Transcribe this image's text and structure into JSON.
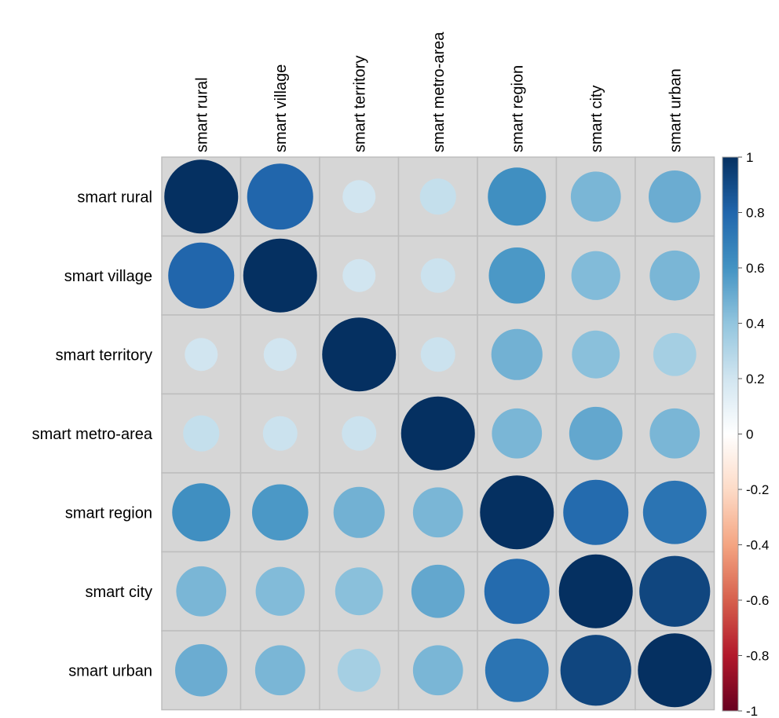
{
  "chart_data": {
    "type": "heatmap",
    "subtype": "correlation-circle-matrix",
    "title": "",
    "xlabel": "",
    "ylabel": "",
    "row_labels": [
      "smart rural",
      "smart village",
      "smart territory",
      "smart metro-area",
      "smart region",
      "smart city",
      "smart urban"
    ],
    "col_labels": [
      "smart rural",
      "smart village",
      "smart territory",
      "smart metro-area",
      "smart region",
      "smart city",
      "smart urban"
    ],
    "values": [
      [
        1.0,
        0.8,
        0.2,
        0.24,
        0.62,
        0.46,
        0.5
      ],
      [
        0.8,
        1.0,
        0.2,
        0.22,
        0.58,
        0.44,
        0.46
      ],
      [
        0.2,
        0.2,
        1.0,
        0.22,
        0.48,
        0.42,
        0.34
      ],
      [
        0.24,
        0.22,
        0.22,
        1.0,
        0.46,
        0.52,
        0.46
      ],
      [
        0.62,
        0.58,
        0.48,
        0.46,
        1.0,
        0.78,
        0.74
      ],
      [
        0.46,
        0.44,
        0.42,
        0.52,
        0.78,
        1.0,
        0.92
      ],
      [
        0.5,
        0.46,
        0.34,
        0.46,
        0.74,
        0.92,
        1.0
      ]
    ],
    "colorbar": {
      "ticks": [
        "1",
        "0.8",
        "0.6",
        "0.4",
        "0.2",
        "0",
        "-0.2",
        "-0.4",
        "-0.6",
        "-0.8",
        "-1"
      ],
      "range": [
        -1,
        1
      ],
      "colors": {
        "neg_strong": "#67001f",
        "neg_mid": "#d6604d",
        "zero": "#ffffff",
        "pos_light": "#d1e5f0",
        "pos_mid": "#4393c3",
        "pos_strong": "#053061"
      }
    },
    "cell_background": "#d6d6d6",
    "grid_color": "#bdbdbd",
    "grid": true,
    "legend_position": "right"
  }
}
